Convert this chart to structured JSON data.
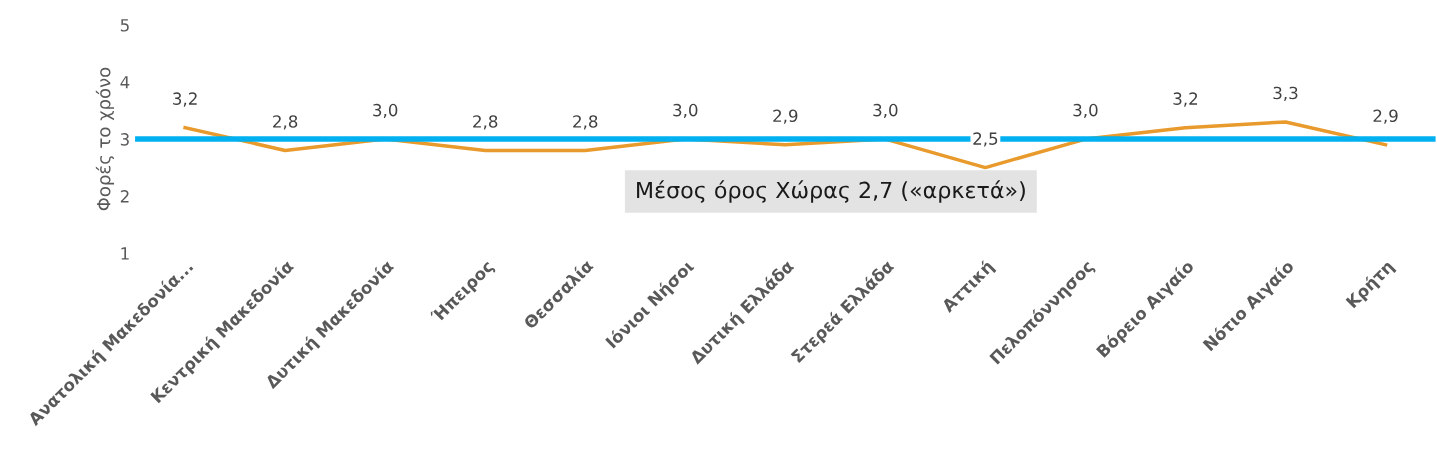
{
  "chart_data": {
    "type": "line",
    "ylabel": "Φορές το χρόνο",
    "categories": [
      "Ανατολική Μακεδονία...",
      "Κεντρική Μακεδονία",
      "Δυτική Μακεδονία",
      "Ήπειρος",
      "Θεσσαλία",
      "Ιόνιοι Νήσοι",
      "Δυτική Ελλάδα",
      "Στερεά Ελλάδα",
      "Αττική",
      "Πελοπόννησος",
      "Βόρειο Αιγαίο",
      "Νότιο Αιγαίο",
      "Κρήτη"
    ],
    "series": [
      {
        "color": "#e89a2c",
        "values": [
          3.2,
          2.8,
          3.0,
          2.8,
          2.8,
          3.0,
          2.9,
          3.0,
          2.5,
          3.0,
          3.2,
          3.3,
          2.9
        ],
        "value_labels": [
          "3,2",
          "2,8",
          "3,0",
          "2,8",
          "2,8",
          "3,0",
          "2,9",
          "3,0",
          "2,5",
          "3,0",
          "3,2",
          "3,3",
          "2,9"
        ]
      }
    ],
    "ylim": [
      1,
      5
    ],
    "yticks": [
      1,
      2,
      3,
      4,
      5
    ],
    "grid": false,
    "legend": false,
    "marker": "none",
    "line_style": "solid",
    "ref_lines": [
      {
        "axis": "y",
        "value": 3,
        "color": "#00b0f0"
      }
    ],
    "annotations": [
      "Μέσος όρος Χώρας 2,7 («αρκετά»)"
    ]
  }
}
